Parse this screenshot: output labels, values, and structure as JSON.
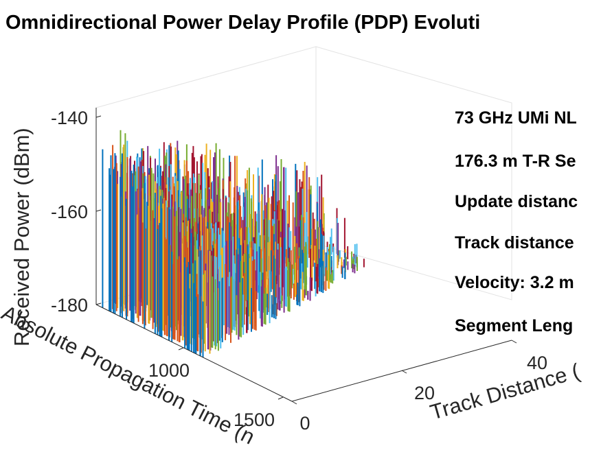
{
  "chart_data": {
    "type": "waterfall-3d-stem",
    "title": "Omnidirectional Power Delay Profile (PDP) Evoluti",
    "xlabel": "Absolute Propagation Time (n",
    "ylabel": "Track Distance (",
    "zlabel": "Received Power (dBm)",
    "x_ticks": [
      "1000",
      "1500"
    ],
    "y_ticks": [
      "0",
      "20",
      "40"
    ],
    "z_ticks": [
      "-140",
      "-160",
      "-180"
    ],
    "xlim": [
      500,
      1700
    ],
    "ylim": [
      0,
      48
    ],
    "zlim": [
      -180,
      -134
    ],
    "grid": false,
    "annotations": [
      "73 GHz UMi NL",
      "176.3 m T-R Se",
      "Update distanc",
      "Track distance",
      "Velocity: 3.2 m",
      "Segment Leng"
    ],
    "color_cycle": [
      "#0072BD",
      "#D95319",
      "#EDB120",
      "#7E2F8E",
      "#77AC30",
      "#4DBEEE",
      "#A2142F"
    ],
    "num_snapshots": 49,
    "snapshot_track_distances_m": [
      0,
      1,
      2,
      3,
      4,
      5,
      6,
      7,
      8,
      9,
      10,
      11,
      12,
      13,
      14,
      15,
      16,
      17,
      18,
      19,
      20,
      21,
      22,
      23,
      24,
      25,
      26,
      27,
      28,
      29,
      30,
      31,
      32,
      33,
      34,
      35,
      36,
      37,
      38,
      39,
      40,
      41,
      42,
      43,
      44,
      45,
      46,
      47,
      48
    ]
  }
}
